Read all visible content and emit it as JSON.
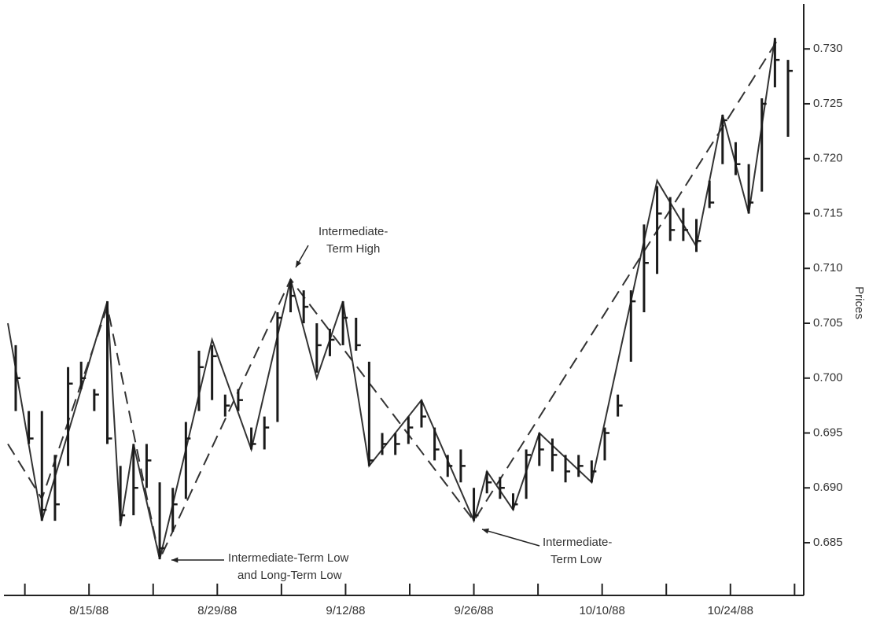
{
  "chart_data": {
    "type": "hlc",
    "y_label": "Prices",
    "high": [
      0.703,
      0.697,
      0.697,
      0.693,
      0.701,
      0.7015,
      0.699,
      0.707,
      0.692,
      0.694,
      0.694,
      0.6905,
      0.69,
      0.696,
      0.7025,
      0.703,
      0.6985,
      0.699,
      0.6955,
      0.6965,
      0.706,
      0.709,
      0.708,
      0.705,
      0.7045,
      0.707,
      0.7055,
      0.7015,
      0.695,
      0.695,
      0.6965,
      0.698,
      0.6955,
      0.693,
      0.6935,
      0.69,
      0.6915,
      0.691,
      0.6895,
      0.6935,
      0.695,
      0.6945,
      0.693,
      0.693,
      0.6925,
      0.6955,
      0.6985,
      0.708,
      0.714,
      0.7175,
      0.7165,
      0.7155,
      0.7145,
      0.718,
      0.724,
      0.7215,
      0.7195,
      0.7255,
      0.731,
      0.729
    ],
    "low": [
      0.697,
      0.694,
      0.687,
      0.687,
      0.692,
      0.699,
      0.697,
      0.694,
      0.687,
      0.6875,
      0.69,
      0.6835,
      0.686,
      0.689,
      0.697,
      0.698,
      0.6965,
      0.697,
      0.6935,
      0.6935,
      0.696,
      0.706,
      0.705,
      0.7005,
      0.702,
      0.703,
      0.7025,
      0.692,
      0.693,
      0.693,
      0.694,
      0.6955,
      0.6925,
      0.691,
      0.6905,
      0.687,
      0.6895,
      0.689,
      0.688,
      0.689,
      0.692,
      0.6915,
      0.6905,
      0.691,
      0.6905,
      0.6925,
      0.6965,
      0.7015,
      0.706,
      0.7095,
      0.7125,
      0.7125,
      0.7115,
      0.7155,
      0.7195,
      0.7185,
      0.715,
      0.717,
      0.7265,
      0.722
    ],
    "close": [
      0.7,
      0.6945,
      0.688,
      0.6885,
      0.6995,
      0.7,
      0.6985,
      0.6945,
      0.6875,
      0.69,
      0.6925,
      0.6845,
      0.6885,
      0.6945,
      0.701,
      0.702,
      0.6975,
      0.698,
      0.694,
      0.6955,
      0.7055,
      0.7075,
      0.7065,
      0.703,
      0.7035,
      0.7055,
      0.703,
      0.6925,
      0.694,
      0.694,
      0.6955,
      0.6965,
      0.6935,
      0.692,
      0.692,
      0.6875,
      0.6905,
      0.69,
      0.6885,
      0.693,
      0.6935,
      0.693,
      0.6915,
      0.692,
      0.6915,
      0.695,
      0.6975,
      0.707,
      0.7105,
      0.715,
      0.7135,
      0.7135,
      0.7125,
      0.716,
      0.7235,
      0.7195,
      0.716,
      0.725,
      0.729,
      0.728
    ],
    "solid": {
      "x": [
        -0.6,
        2,
        7,
        8,
        9,
        11,
        15,
        18,
        21,
        23,
        25,
        27,
        31,
        35,
        36,
        38,
        40,
        44,
        49,
        52,
        54,
        56,
        58
      ],
      "values": [
        0.705,
        0.687,
        0.707,
        0.6865,
        0.694,
        0.6835,
        0.7035,
        0.6935,
        0.709,
        0.7,
        0.707,
        0.692,
        0.698,
        0.687,
        0.6915,
        0.688,
        0.695,
        0.6905,
        0.718,
        0.712,
        0.724,
        0.715,
        0.731
      ]
    },
    "dashed": {
      "x": [
        -0.6,
        2,
        7,
        11,
        21,
        35,
        58.3
      ],
      "values": [
        0.694,
        0.689,
        0.7065,
        0.6835,
        0.709,
        0.687,
        0.731
      ]
    },
    "annotations": [
      {
        "lines": [
          "Intermediate-",
          "Term High"
        ]
      },
      {
        "lines": [
          "Intermediate-Term Low",
          "and Long-Term Low"
        ]
      },
      {
        "lines": [
          "Intermediate-",
          "Term Low"
        ]
      }
    ],
    "xlim": [
      -0.9,
      60.2
    ],
    "xticks": [
      {
        "value": 5.6,
        "label": "8/15/88"
      },
      {
        "value": 15.4,
        "label": "8/29/88"
      },
      {
        "value": 25.2,
        "label": "9/12/88"
      },
      {
        "value": 35.0,
        "label": "9/26/88"
      },
      {
        "value": 44.8,
        "label": "10/10/88"
      },
      {
        "value": 54.6,
        "label": "10/24/88"
      }
    ],
    "xminorticks": [
      0.7,
      10.5,
      20.3,
      30.1,
      39.9,
      49.7,
      59.5
    ],
    "ylim": [
      0.6802,
      0.7341
    ],
    "yticks": [
      0.685,
      {
        "value": 0.69,
        "label": "0.690"
      },
      0.695,
      {
        "value": 0.7,
        "label": "0.700"
      },
      0.705,
      {
        "value": 0.71,
        "label": "0.710"
      },
      0.715,
      {
        "value": 0.72,
        "label": "0.720"
      },
      0.725,
      {
        "value": 0.73,
        "label": "0.730"
      }
    ],
    "color": "#1a1a1a"
  }
}
